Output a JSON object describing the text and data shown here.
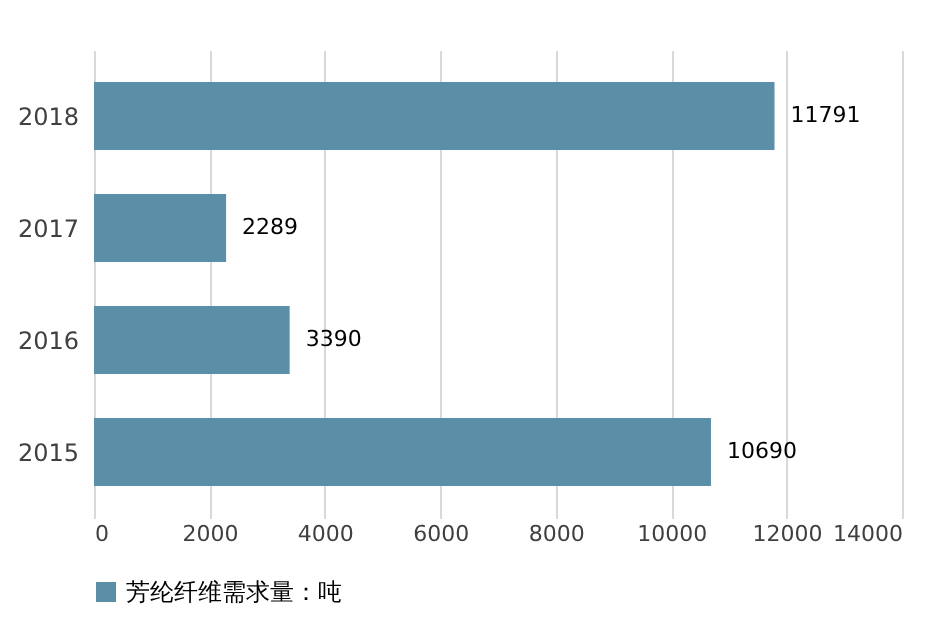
{
  "chart_data": {
    "type": "bar",
    "orientation": "horizontal",
    "categories": [
      "2018",
      "2017",
      "2016",
      "2015"
    ],
    "series": [
      {
        "name": "芳纶纤维需求量：吨",
        "color": "#5b8fa8",
        "values": [
          11791,
          2289,
          3390,
          10690
        ]
      }
    ],
    "xlim": [
      0,
      14000
    ],
    "xticks": [
      0,
      2000,
      4000,
      6000,
      8000,
      10000,
      12000,
      14000
    ],
    "grid": "x",
    "legend": "bottom",
    "data_labels": true
  }
}
